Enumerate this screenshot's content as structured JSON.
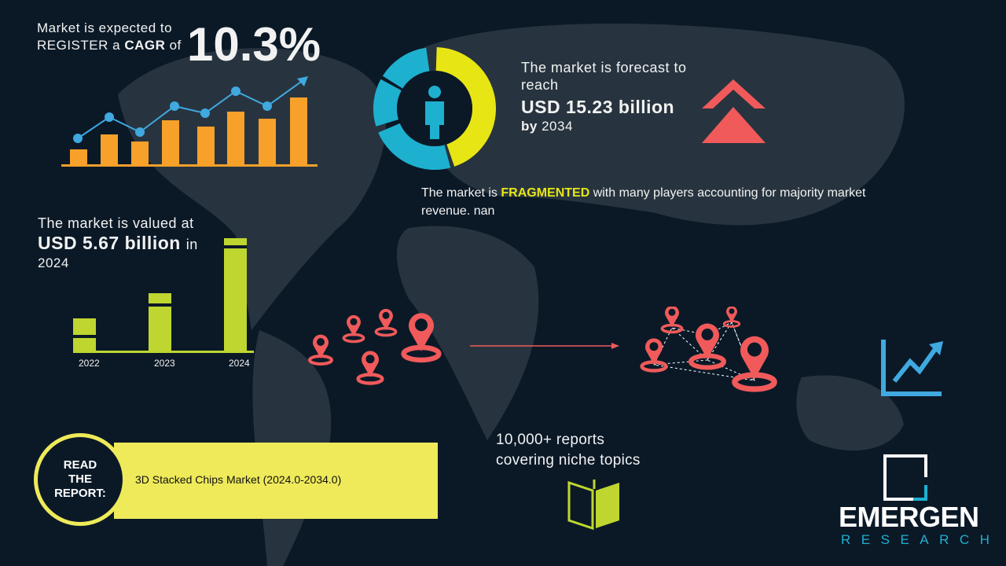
{
  "cagr": {
    "line1": "Market is expected to",
    "line2_pre": "REGISTER a ",
    "line2_bold": "CAGR",
    "line2_post": " of",
    "value": "10.3%"
  },
  "forecast": {
    "line1": "The market is forecast to",
    "line2": "reach",
    "value": "USD 15.23 billion",
    "by_bold": "by",
    "year": "2034"
  },
  "fragmented": {
    "pre": "The market is ",
    "highlight": "FRAGMENTED",
    "post": " with many players accounting for majority market",
    "line2": "revenue. nan"
  },
  "valued": {
    "line1": "The market is valued at",
    "value": "USD 5.67 billion",
    "in": "in",
    "year": "2024"
  },
  "chart_data": {
    "type": "bar",
    "categories": [
      "2022",
      "2023",
      "2024"
    ],
    "ylim": [
      0,
      null
    ]
  },
  "reports": {
    "line1": "10,000+ reports",
    "line2": "covering niche topics"
  },
  "read_report": {
    "label_lines": [
      "READ",
      "THE",
      "REPORT:"
    ],
    "title": "3D Stacked Chips Market (2024.0-2034.0)"
  },
  "logo": {
    "name": "EMERGEN",
    "sub": "RESEARCH"
  },
  "colors": {
    "background": "#0b1927",
    "orange": "#f7a02a",
    "line_blue": "#3fa9e0",
    "yellow": "#e8e515",
    "teal": "#1eb0cf",
    "red": "#f05a5a",
    "green": "#bfd630",
    "banner": "#eeea5a"
  },
  "icons": [
    "growth-chart-icon",
    "donut-person-icon",
    "double-chevron-up-icon",
    "location-pin-icon",
    "trend-up-icon",
    "open-book-icon"
  ]
}
